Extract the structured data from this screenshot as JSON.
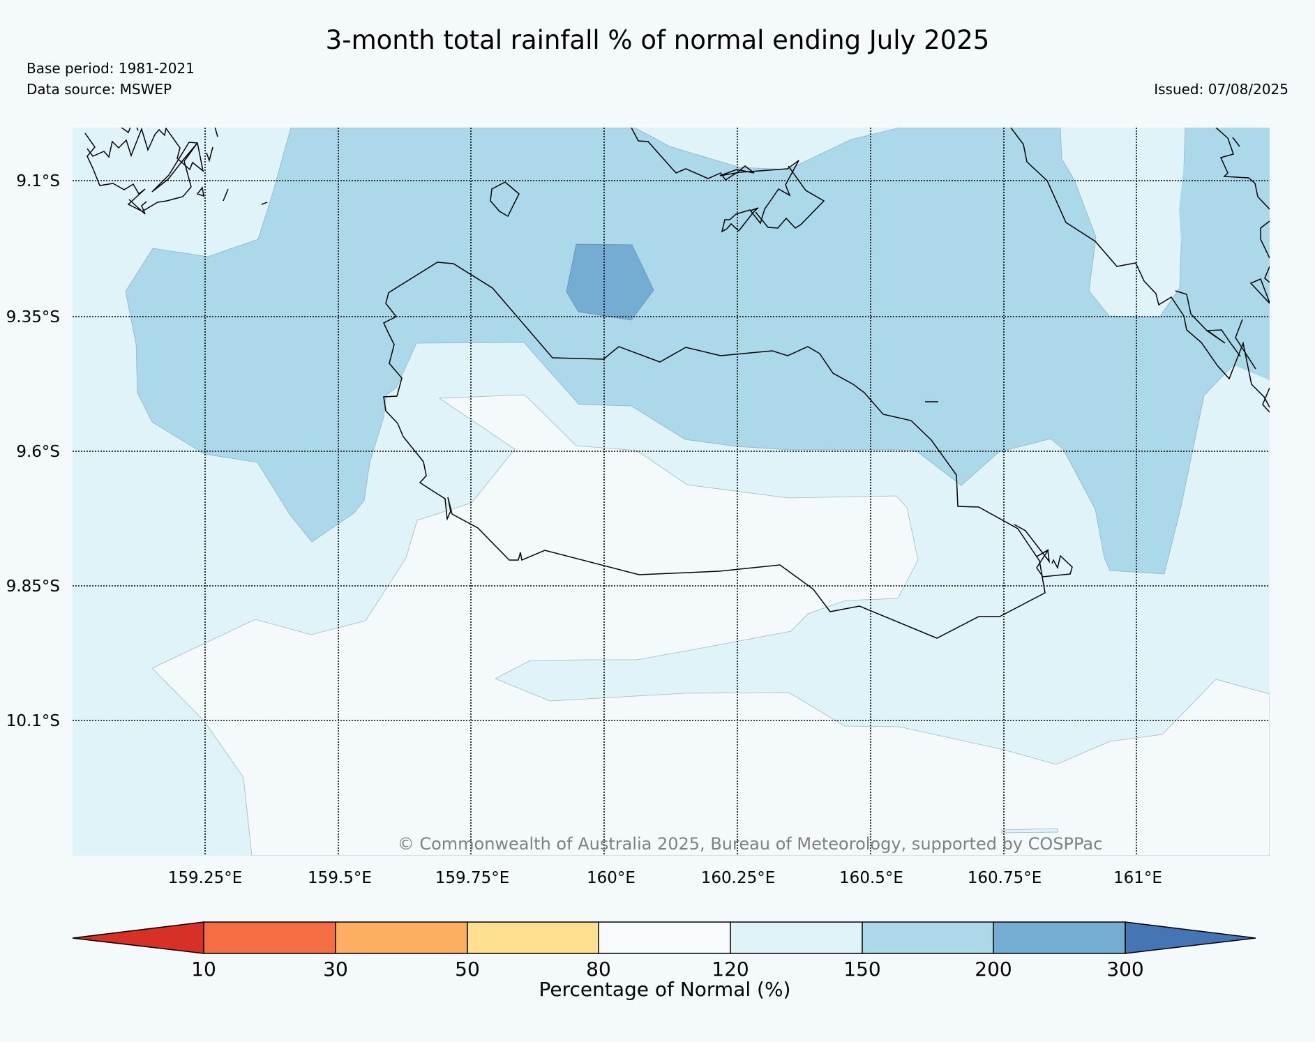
{
  "header": {
    "title": "3-month total rainfall % of normal ending July 2025",
    "base_period": "Base period: 1981-2021",
    "data_source": "Data source: MSWEP",
    "issued": "Issued: 07/08/2025"
  },
  "map": {
    "latitude_labels": [
      "9.1°S",
      "9.35°S",
      "9.6°S",
      "9.85°S",
      "10.1°S"
    ],
    "longitude_labels": [
      "159.25°E",
      "159.5°E",
      "159.75°E",
      "160°E",
      "160.25°E",
      "160.5°E",
      "160.75°E",
      "161°E"
    ],
    "gridlines": "dotted",
    "credit": "© Commonwealth of Australia 2025, Bureau of Meteorology, supported by COSPPac"
  },
  "colorbar": {
    "label": "Percentage of Normal (%)",
    "ticks": [
      "10",
      "30",
      "50",
      "80",
      "120",
      "150",
      "200",
      "300"
    ],
    "colors": [
      "#d73027",
      "#f46d43",
      "#fdae61",
      "#fee090",
      "#f7fbfd",
      "#e0f3f8",
      "#abd9e9",
      "#74add1",
      "#4575b4"
    ]
  }
}
